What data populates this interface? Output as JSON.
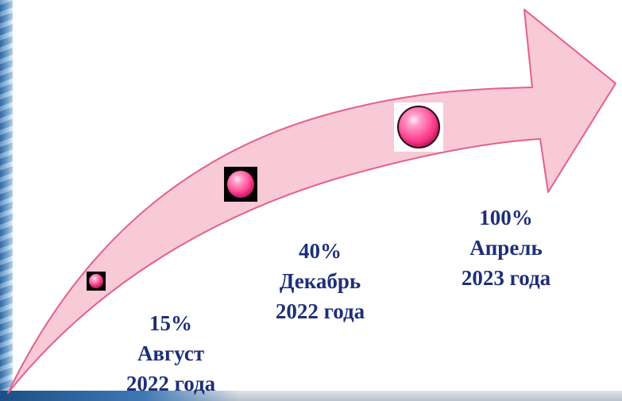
{
  "stages": [
    {
      "percent": "15%",
      "month": "Август",
      "year": "2022 года",
      "progress": 15
    },
    {
      "percent": "40%",
      "month": "Декабрь",
      "year": "2022 года",
      "progress": 40
    },
    {
      "percent": "100%",
      "month": "Апрель",
      "year": "2023 года",
      "progress": 100
    }
  ],
  "colors": {
    "arrow_fill": "#f8c9d6",
    "arrow_stroke": "#e4608a",
    "label_text": "#1e2f78",
    "marker": "#ff3f8f"
  },
  "icons": [
    "pink-sphere-icon"
  ]
}
